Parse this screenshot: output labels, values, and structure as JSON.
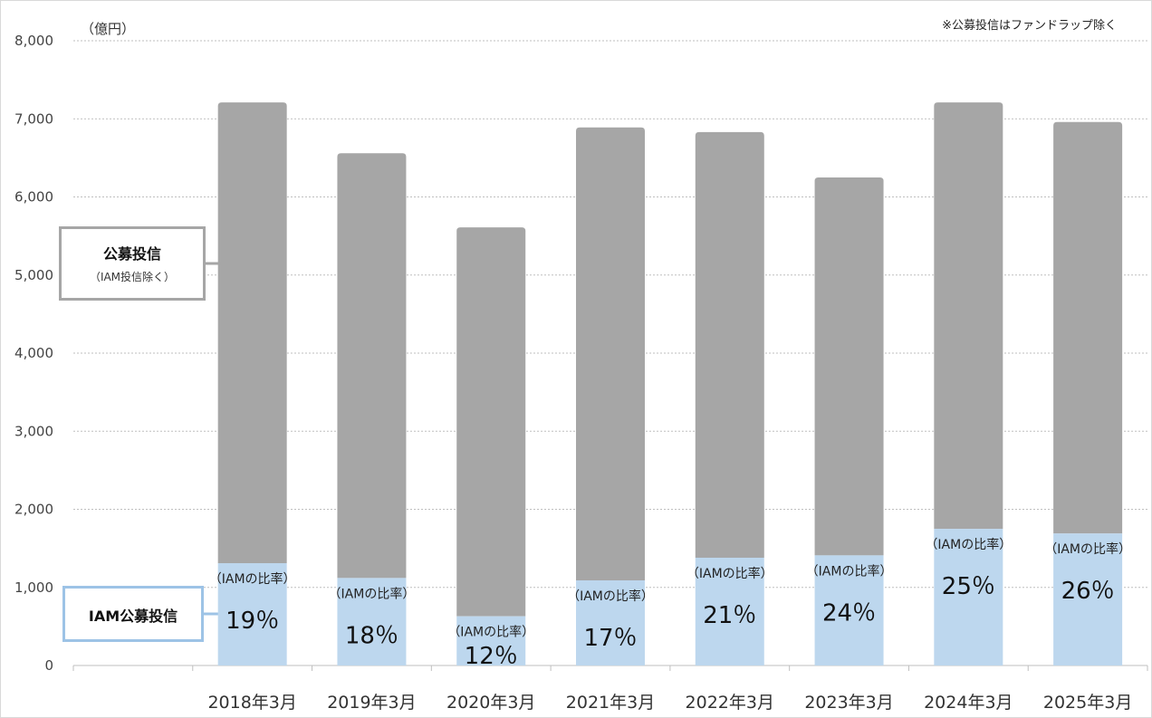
{
  "note": "※公募投信はファンドラップ除く",
  "chart_data": {
    "type": "bar",
    "stacked": true,
    "unit_label": "（億円）",
    "categories": [
      "",
      "2018年3月",
      "2019年3月",
      "2020年3月",
      "2021年3月",
      "2022年3月",
      "2023年3月",
      "2024年3月",
      "2025年3月"
    ],
    "series": [
      {
        "name": "IAM公募投信",
        "color": "#bdd7ee",
        "values": [
          null,
          1310,
          1120,
          630,
          1090,
          1380,
          1410,
          1750,
          1690
        ]
      },
      {
        "name": "公募投信",
        "subname": "（IAM投信除く）",
        "color": "#a6a6a6",
        "values": [
          null,
          5900,
          5440,
          4980,
          5800,
          5450,
          4840,
          5460,
          5270
        ]
      }
    ],
    "ratio_label": "（IAMの比率）",
    "ratios": [
      null,
      "19％",
      "18％",
      "12％",
      "17％",
      "21％",
      "24％",
      "25％",
      "26％"
    ],
    "ylim": [
      0,
      8000
    ],
    "yticks": [
      "0",
      "1,000",
      "2,000",
      "3,000",
      "4,000",
      "5,000",
      "6,000",
      "7,000",
      "8,000"
    ],
    "grid": true,
    "legend_placement": "left, callout boxes"
  }
}
